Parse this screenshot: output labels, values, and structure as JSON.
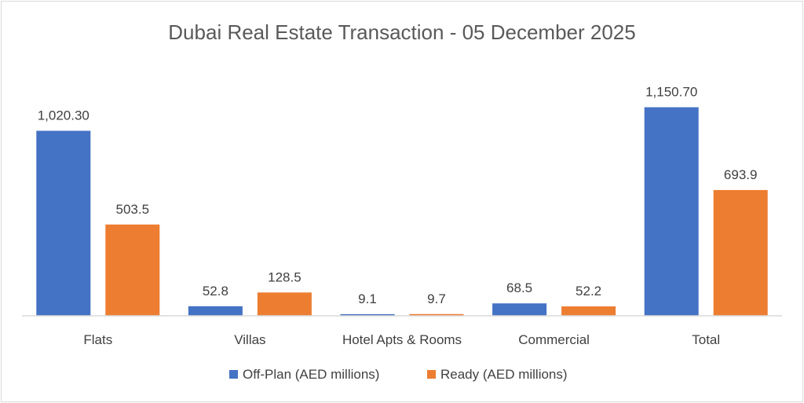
{
  "chart_data": {
    "type": "bar",
    "title": "Dubai Real Estate Transaction - 05 December 2025",
    "categories": [
      "Flats",
      "Villas",
      "Hotel Apts & Rooms",
      "Commercial",
      "Total"
    ],
    "series": [
      {
        "name": "Off-Plan (AED millions)",
        "color": "#4472c4",
        "values": [
          1020.3,
          52.8,
          9.1,
          68.5,
          1150.7
        ],
        "labels": [
          "1,020.30",
          "52.8",
          "9.1",
          "68.5",
          "1,150.70"
        ]
      },
      {
        "name": "Ready (AED millions)",
        "color": "#ed7d31",
        "values": [
          503.5,
          128.5,
          9.7,
          52.2,
          693.9
        ],
        "labels": [
          "503.5",
          "128.5",
          "9.7",
          "52.2",
          "693.9"
        ]
      }
    ],
    "xlabel": "",
    "ylabel": "",
    "ylim": [
      0,
      1300
    ],
    "grid": false,
    "legend": "bottom"
  }
}
